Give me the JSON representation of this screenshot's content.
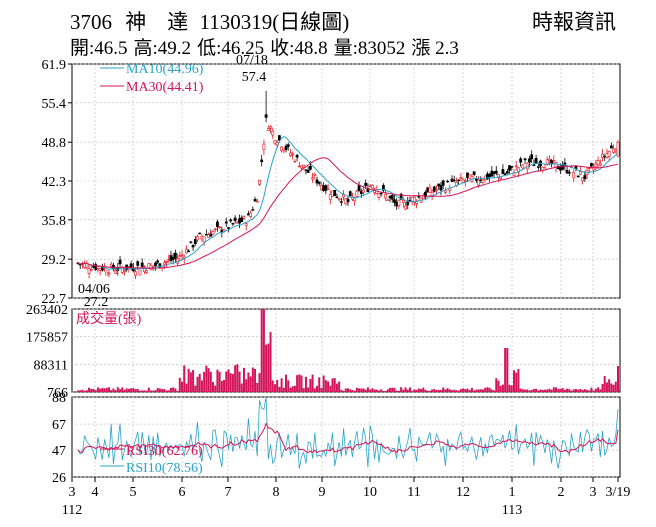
{
  "header": {
    "code": "3706",
    "name": "神　達",
    "date_label": "1130319(日線圖)",
    "source": "時報資訊",
    "stats": [
      "開:46.5",
      "高:49.2",
      "低:46.25",
      "收:48.8",
      "量:83052",
      "漲 2.3"
    ]
  },
  "colors": {
    "up": "#e8101c",
    "down": "#000000",
    "ma10": "#2aa3c8",
    "ma30": "#d4145a",
    "volume": "#d4145a",
    "rsi30": "#d4145a",
    "rsi10": "#2aa3c8",
    "grid": "#b9b9b9"
  },
  "chart_data": [
    {
      "type": "candlestick",
      "panel": "price",
      "yticks": [
        61.9,
        55.4,
        48.8,
        42.3,
        35.8,
        29.2,
        22.7
      ],
      "ylim": [
        22.7,
        61.9
      ],
      "series": [
        {
          "name": "MA10(44.96)",
          "indicator": "MA10",
          "value": 44.96
        },
        {
          "name": "MA30(44.41)",
          "indicator": "MA30",
          "value": 44.41
        }
      ],
      "annotations": [
        {
          "date": "07/18",
          "label": "57.4",
          "kind": "high",
          "value": 57.4
        },
        {
          "date": "04/06",
          "label": "27.2",
          "kind": "low",
          "value": 27.2
        }
      ],
      "ohlc_approx": [
        {
          "d": "112/03",
          "close": 28.5
        },
        {
          "d": "112/04/06",
          "low": 27.2,
          "close": 27.8
        },
        {
          "d": "112/05",
          "close": 28.2
        },
        {
          "d": "112/06",
          "close": 33.5
        },
        {
          "d": "112/07",
          "close": 36.0
        },
        {
          "d": "112/07/18",
          "high": 57.4,
          "close": 52.5
        },
        {
          "d": "112/08",
          "close": 46.0
        },
        {
          "d": "112/09",
          "close": 39.0
        },
        {
          "d": "112/10",
          "close": 41.5
        },
        {
          "d": "112/11",
          "close": 37.8
        },
        {
          "d": "112/12",
          "close": 40.5
        },
        {
          "d": "113/01",
          "close": 44.0
        },
        {
          "d": "113/02",
          "close": 45.5
        },
        {
          "d": "113/03/19",
          "open": 46.5,
          "high": 49.2,
          "low": 46.25,
          "close": 48.8
        }
      ]
    },
    {
      "type": "bar",
      "panel": "volume",
      "title": "成交量(張)",
      "yticks": [
        263402,
        175857,
        88311,
        766
      ],
      "ylim": [
        766,
        263402
      ],
      "last_value": 83052
    },
    {
      "type": "line",
      "panel": "rsi",
      "yticks": [
        88,
        67,
        47,
        26
      ],
      "ylim": [
        26,
        88
      ],
      "series": [
        {
          "name": "RSI30(62.76)",
          "indicator": "RSI30",
          "value": 62.76
        },
        {
          "name": "RSI10(78.56)",
          "indicator": "RSI10",
          "value": 78.56
        }
      ]
    }
  ],
  "xaxis": {
    "ticks": [
      {
        "label": "3",
        "sub": "112"
      },
      {
        "label": "4"
      },
      {
        "label": "5"
      },
      {
        "label": "6"
      },
      {
        "label": "7"
      },
      {
        "label": "8"
      },
      {
        "label": "9"
      },
      {
        "label": "10"
      },
      {
        "label": "11"
      },
      {
        "label": "12"
      },
      {
        "label": "1",
        "sub": "113"
      },
      {
        "label": "2"
      },
      {
        "label": "3"
      },
      {
        "label": "3/19"
      }
    ]
  }
}
